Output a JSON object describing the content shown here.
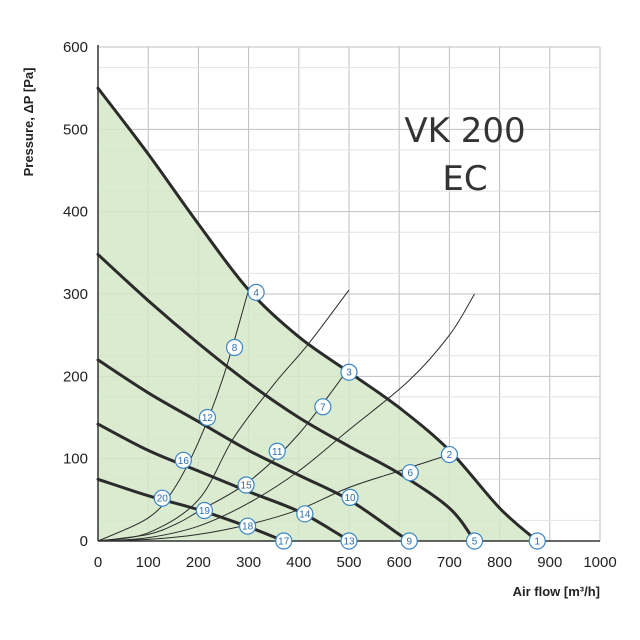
{
  "chart_data": {
    "type": "line",
    "title_lines": [
      "VK 200",
      "EC"
    ],
    "xlabel": "Air flow [m³/h]",
    "ylabel": "Pressure, ΔP [Pa]",
    "xlim": [
      0,
      1000
    ],
    "ylim": [
      0,
      600
    ],
    "x_ticks": [
      0,
      100,
      200,
      300,
      400,
      500,
      600,
      700,
      800,
      900,
      1000
    ],
    "y_ticks": [
      0,
      100,
      200,
      300,
      400,
      500,
      600
    ],
    "grid": true,
    "colors": {
      "fill": "#d4e8c8",
      "curve": "#2b2b2b",
      "point_stroke": "#3a86c8",
      "grid": "#bfbfbf"
    },
    "fan_curves": [
      {
        "points": [
          [
            0,
            550
          ],
          [
            100,
            470
          ],
          [
            200,
            385
          ],
          [
            300,
            305
          ],
          [
            400,
            248
          ],
          [
            500,
            205
          ],
          [
            600,
            162
          ],
          [
            700,
            110
          ],
          [
            800,
            40
          ],
          [
            875,
            0
          ]
        ]
      },
      {
        "points": [
          [
            0,
            348
          ],
          [
            100,
            292
          ],
          [
            200,
            240
          ],
          [
            300,
            192
          ],
          [
            400,
            150
          ],
          [
            500,
            115
          ],
          [
            600,
            82
          ],
          [
            700,
            40
          ],
          [
            750,
            0
          ]
        ]
      },
      {
        "points": [
          [
            0,
            220
          ],
          [
            100,
            180
          ],
          [
            200,
            145
          ],
          [
            300,
            110
          ],
          [
            400,
            80
          ],
          [
            500,
            50
          ],
          [
            600,
            8
          ],
          [
            620,
            0
          ]
        ]
      },
      {
        "points": [
          [
            0,
            142
          ],
          [
            100,
            110
          ],
          [
            200,
            85
          ],
          [
            300,
            60
          ],
          [
            400,
            36
          ],
          [
            480,
            8
          ],
          [
            500,
            0
          ]
        ]
      },
      {
        "points": [
          [
            0,
            75
          ],
          [
            100,
            55
          ],
          [
            200,
            38
          ],
          [
            300,
            17
          ],
          [
            370,
            0
          ]
        ]
      }
    ],
    "system_curves": [
      {
        "points": [
          [
            0,
            0
          ],
          [
            100,
            28
          ],
          [
            150,
            62
          ],
          [
            200,
            120
          ],
          [
            250,
            200
          ],
          [
            300,
            305
          ]
        ]
      },
      {
        "points": [
          [
            0,
            0
          ],
          [
            100,
            10
          ],
          [
            200,
            50
          ],
          [
            270,
            125
          ],
          [
            350,
            190
          ],
          [
            420,
            240
          ],
          [
            500,
            305
          ]
        ]
      },
      {
        "points": [
          [
            0,
            0
          ],
          [
            100,
            8
          ],
          [
            160,
            22
          ],
          [
            200,
            36
          ],
          [
            300,
            72
          ],
          [
            400,
            130
          ],
          [
            500,
            210
          ]
        ]
      },
      {
        "points": [
          [
            0,
            0
          ],
          [
            100,
            4
          ],
          [
            200,
            18
          ],
          [
            300,
            46
          ],
          [
            400,
            85
          ],
          [
            500,
            135
          ],
          [
            620,
            195
          ],
          [
            700,
            250
          ],
          [
            750,
            300
          ]
        ]
      },
      {
        "points": [
          [
            0,
            0
          ],
          [
            100,
            2
          ],
          [
            200,
            8
          ],
          [
            300,
            20
          ],
          [
            400,
            38
          ],
          [
            500,
            65
          ],
          [
            600,
            85
          ],
          [
            700,
            105
          ]
        ]
      }
    ],
    "operating_points": [
      {
        "label": "1",
        "x": 875,
        "y": 0
      },
      {
        "label": "2",
        "x": 700,
        "y": 105
      },
      {
        "label": "3",
        "x": 500,
        "y": 205
      },
      {
        "label": "4",
        "x": 315,
        "y": 302
      },
      {
        "label": "5",
        "x": 750,
        "y": 0
      },
      {
        "label": "6",
        "x": 622,
        "y": 83
      },
      {
        "label": "7",
        "x": 448,
        "y": 163
      },
      {
        "label": "8",
        "x": 272,
        "y": 235
      },
      {
        "label": "9",
        "x": 620,
        "y": 0
      },
      {
        "label": "10",
        "x": 502,
        "y": 53
      },
      {
        "label": "11",
        "x": 357,
        "y": 109
      },
      {
        "label": "12",
        "x": 218,
        "y": 150
      },
      {
        "label": "13",
        "x": 500,
        "y": 0
      },
      {
        "label": "14",
        "x": 412,
        "y": 33
      },
      {
        "label": "15",
        "x": 295,
        "y": 68
      },
      {
        "label": "16",
        "x": 170,
        "y": 98
      },
      {
        "label": "17",
        "x": 370,
        "y": 0
      },
      {
        "label": "18",
        "x": 298,
        "y": 18
      },
      {
        "label": "19",
        "x": 212,
        "y": 37
      },
      {
        "label": "20",
        "x": 128,
        "y": 52
      }
    ]
  }
}
